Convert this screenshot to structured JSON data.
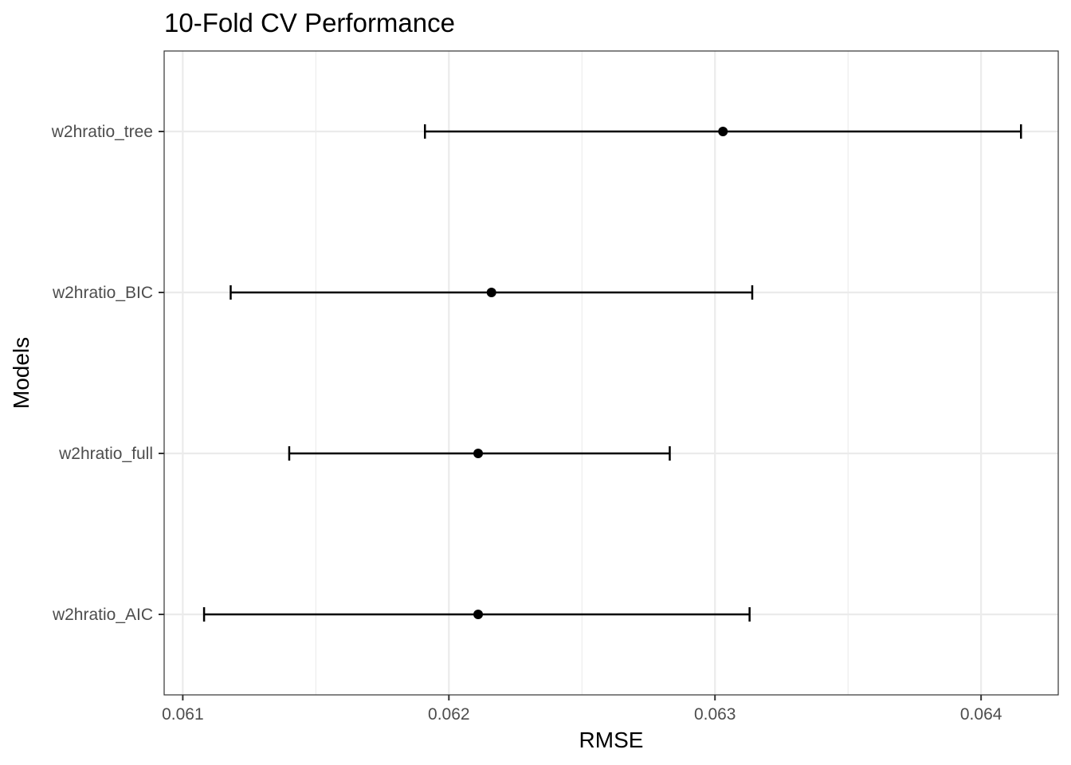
{
  "chart_data": {
    "type": "errorbar",
    "title": "10-Fold CV Performance",
    "xlabel": "RMSE",
    "ylabel": "Models",
    "xlim": [
      0.06093,
      0.06429
    ],
    "x_major_ticks": [
      0.061,
      0.062,
      0.063,
      0.064
    ],
    "x_minor_ticks": [
      0.0615,
      0.0625,
      0.0635
    ],
    "x_tick_labels": [
      "0.061",
      "0.062",
      "0.063",
      "0.064"
    ],
    "categories": [
      "w2hratio_tree",
      "w2hratio_BIC",
      "w2hratio_full",
      "w2hratio_AIC"
    ],
    "series": [
      {
        "points": [
          {
            "model": "w2hratio_tree",
            "mean": 0.06303,
            "lower": 0.06191,
            "upper": 0.06415
          },
          {
            "model": "w2hratio_BIC",
            "mean": 0.06216,
            "lower": 0.06118,
            "upper": 0.06314
          },
          {
            "model": "w2hratio_full",
            "mean": 0.06211,
            "lower": 0.0614,
            "upper": 0.06283
          },
          {
            "model": "w2hratio_AIC",
            "mean": 0.06211,
            "lower": 0.06108,
            "upper": 0.06313
          }
        ]
      }
    ],
    "grid": true,
    "legend": "none"
  }
}
